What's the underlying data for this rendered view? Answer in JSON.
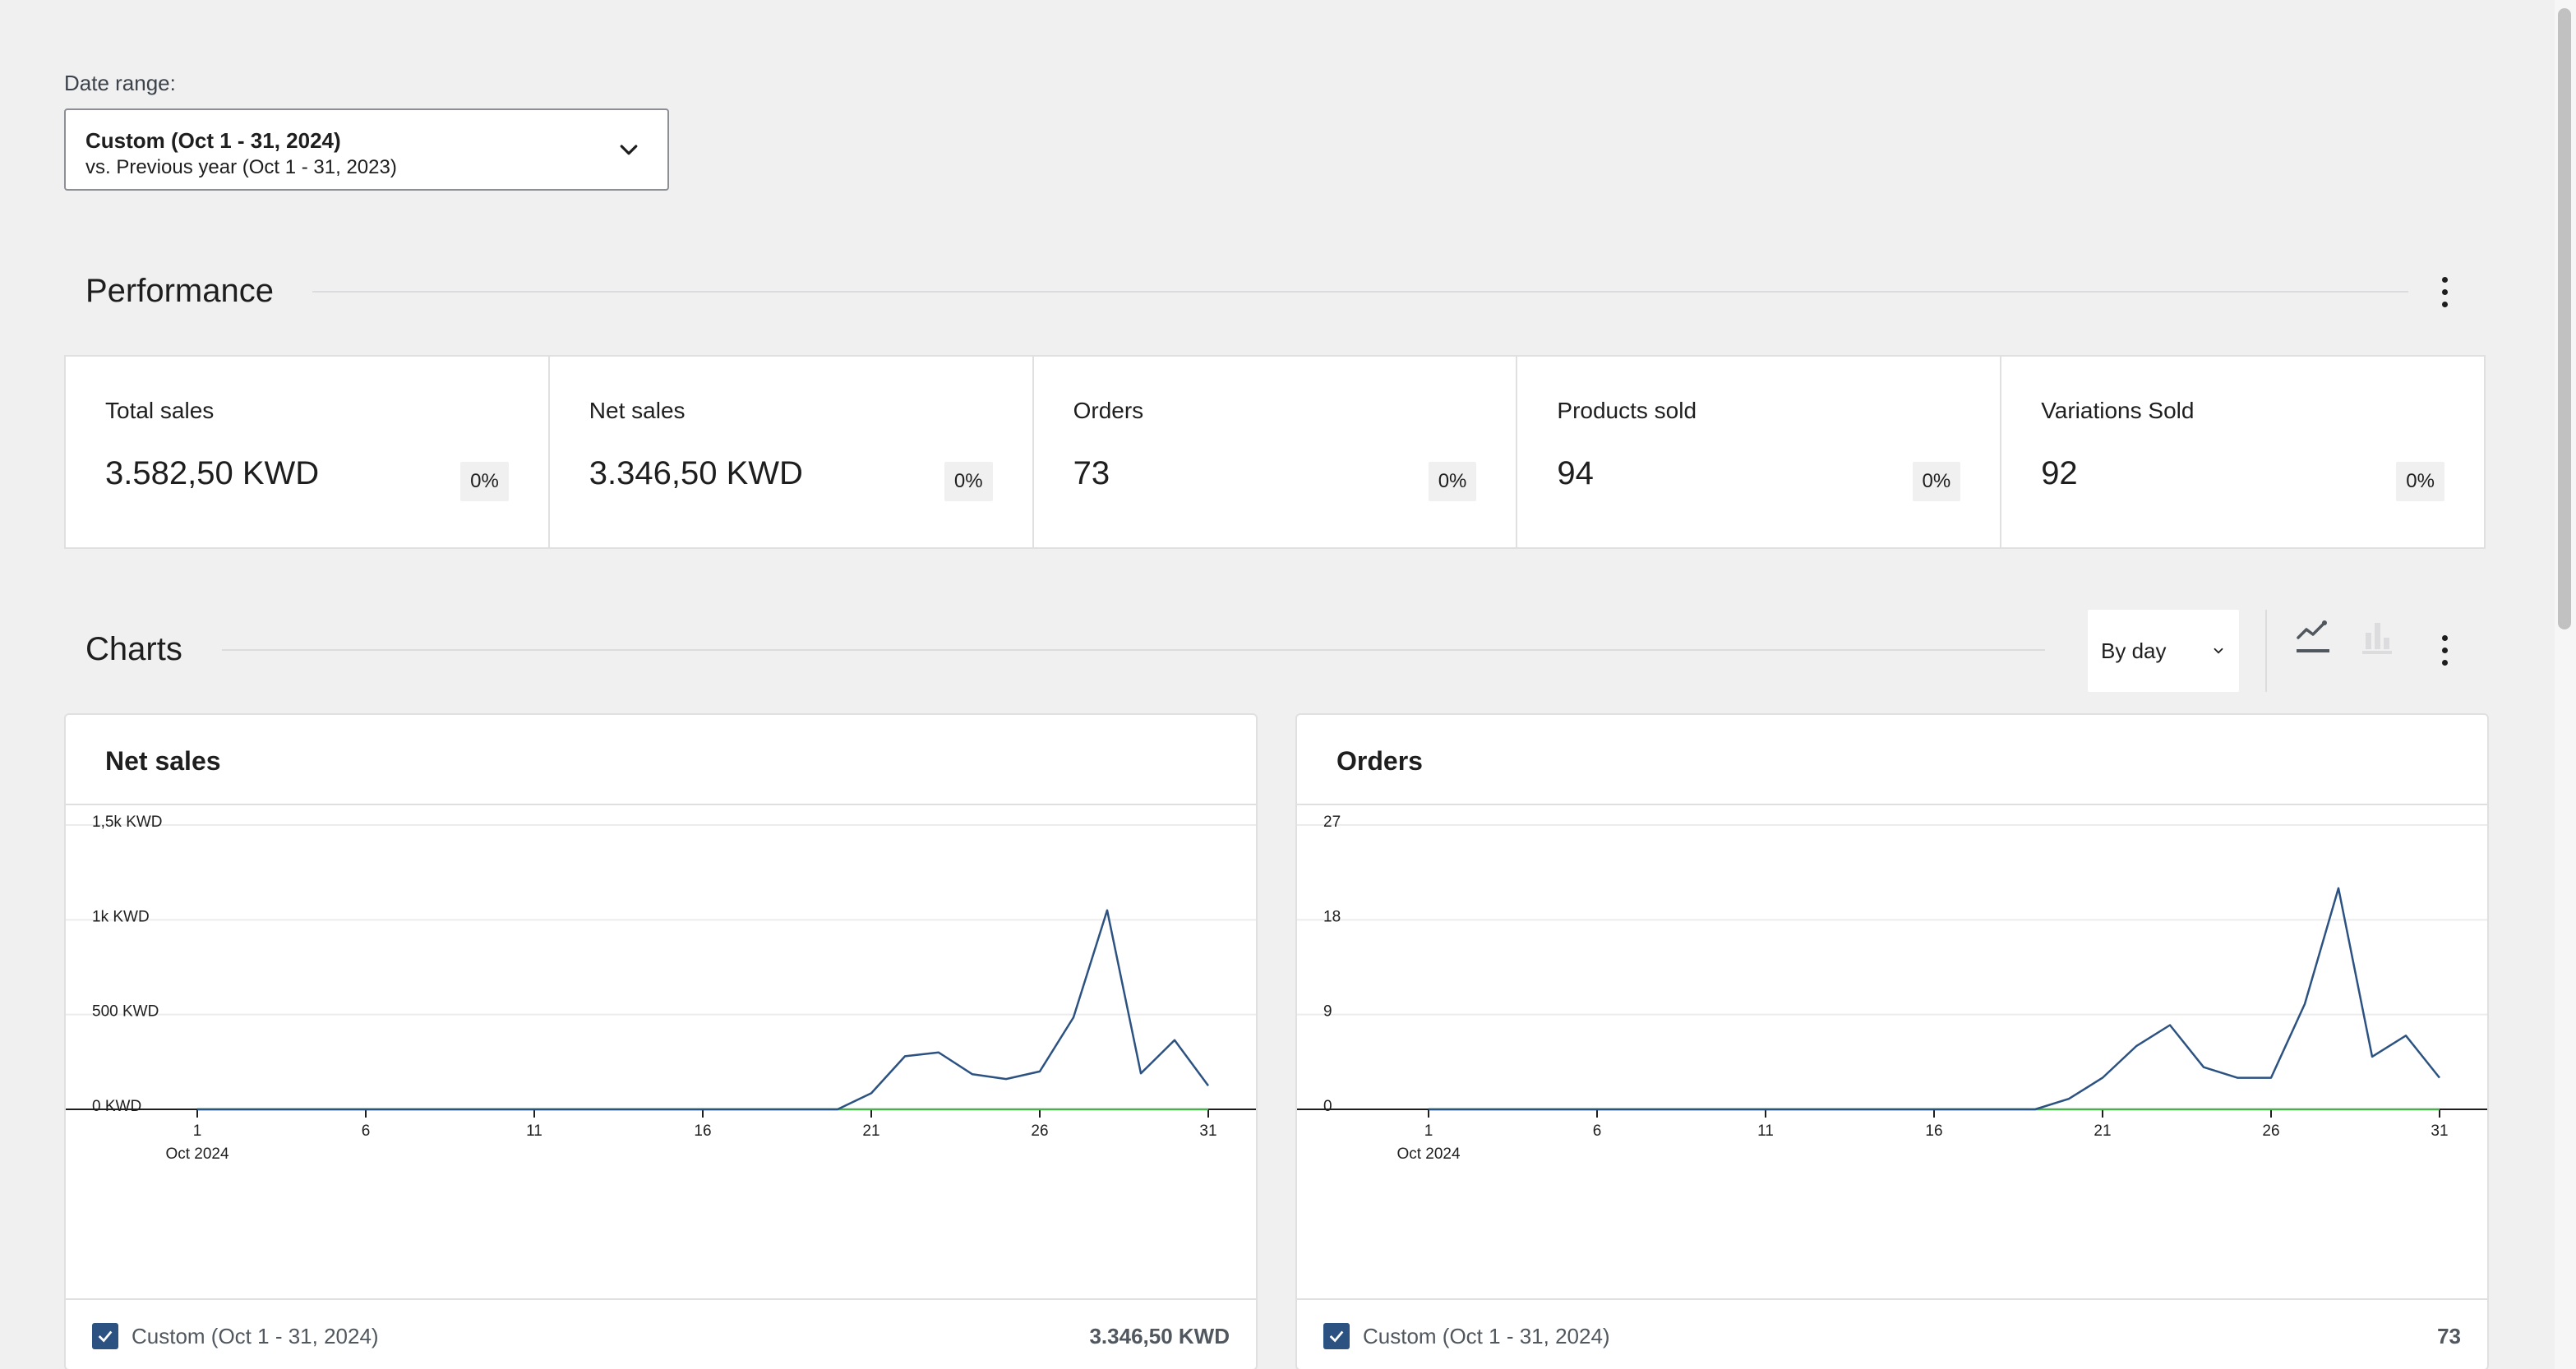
{
  "date_range": {
    "label": "Date range:",
    "primary": "Custom (Oct 1 - 31, 2024)",
    "secondary": "vs. Previous year (Oct 1 - 31, 2023)"
  },
  "performance": {
    "title": "Performance",
    "cards": [
      {
        "label": "Total sales",
        "value": "3.582,50 KWD",
        "delta": "0%"
      },
      {
        "label": "Net sales",
        "value": "3.346,50 KWD",
        "delta": "0%"
      },
      {
        "label": "Orders",
        "value": "73",
        "delta": "0%"
      },
      {
        "label": "Products sold",
        "value": "94",
        "delta": "0%"
      },
      {
        "label": "Variations Sold",
        "value": "92",
        "delta": "0%"
      }
    ]
  },
  "charts": {
    "title": "Charts",
    "interval": "By day",
    "icons": {
      "line": "line-chart-icon",
      "bar": "bar-chart-icon",
      "more": "more-vertical-icon"
    },
    "colors": {
      "series": "#2c5282",
      "comparison": "#4caf50",
      "accent": "#2c5282"
    }
  },
  "chart_data": [
    {
      "type": "line",
      "title": "Net sales",
      "x": [
        1,
        2,
        3,
        4,
        5,
        6,
        7,
        8,
        9,
        10,
        11,
        12,
        13,
        14,
        15,
        16,
        17,
        18,
        19,
        20,
        21,
        22,
        23,
        24,
        25,
        26,
        27,
        28,
        29,
        30,
        31
      ],
      "x_tick_labels": [
        "1",
        "6",
        "11",
        "16",
        "21",
        "26",
        "31"
      ],
      "x_sublabel": "Oct 2024",
      "y_tick_labels": [
        "0 KWD",
        "500 KWD",
        "1k KWD",
        "1,5k KWD"
      ],
      "ylim": [
        0,
        1500
      ],
      "series": [
        {
          "name": "Custom (Oct 1 - 31, 2024)",
          "color": "#2c5282",
          "values": [
            0,
            0,
            0,
            0,
            0,
            0,
            0,
            0,
            0,
            0,
            0,
            0,
            0,
            0,
            0,
            0,
            0,
            0,
            0,
            0,
            85,
            280,
            300,
            185,
            160,
            200,
            485,
            1050,
            190,
            365,
            125
          ]
        },
        {
          "color": "#4caf50",
          "values": [
            0,
            0,
            0,
            0,
            0,
            0,
            0,
            0,
            0,
            0,
            0,
            0,
            0,
            0,
            0,
            0,
            0,
            0,
            0,
            0,
            0,
            0,
            0,
            0,
            0,
            0,
            0,
            0,
            0,
            0,
            0
          ]
        }
      ],
      "legend_total": "3.346,50 KWD"
    },
    {
      "type": "line",
      "title": "Orders",
      "x": [
        1,
        2,
        3,
        4,
        5,
        6,
        7,
        8,
        9,
        10,
        11,
        12,
        13,
        14,
        15,
        16,
        17,
        18,
        19,
        20,
        21,
        22,
        23,
        24,
        25,
        26,
        27,
        28,
        29,
        30,
        31
      ],
      "x_tick_labels": [
        "1",
        "6",
        "11",
        "16",
        "21",
        "26",
        "31"
      ],
      "x_sublabel": "Oct 2024",
      "y_tick_labels": [
        "0",
        "9",
        "18",
        "27"
      ],
      "ylim": [
        0,
        27
      ],
      "series": [
        {
          "name": "Custom (Oct 1 - 31, 2024)",
          "color": "#2c5282",
          "values": [
            0,
            0,
            0,
            0,
            0,
            0,
            0,
            0,
            0,
            0,
            0,
            0,
            0,
            0,
            0,
            0,
            0,
            0,
            0,
            1,
            3,
            6,
            8,
            4,
            3,
            3,
            10,
            21,
            5,
            7,
            3
          ]
        },
        {
          "color": "#4caf50",
          "values": [
            0,
            0,
            0,
            0,
            0,
            0,
            0,
            0,
            0,
            0,
            0,
            0,
            0,
            0,
            0,
            0,
            0,
            0,
            0,
            0,
            0,
            0,
            0,
            0,
            0,
            0,
            0,
            0,
            0,
            0,
            0
          ]
        }
      ],
      "legend_total": "73"
    }
  ]
}
